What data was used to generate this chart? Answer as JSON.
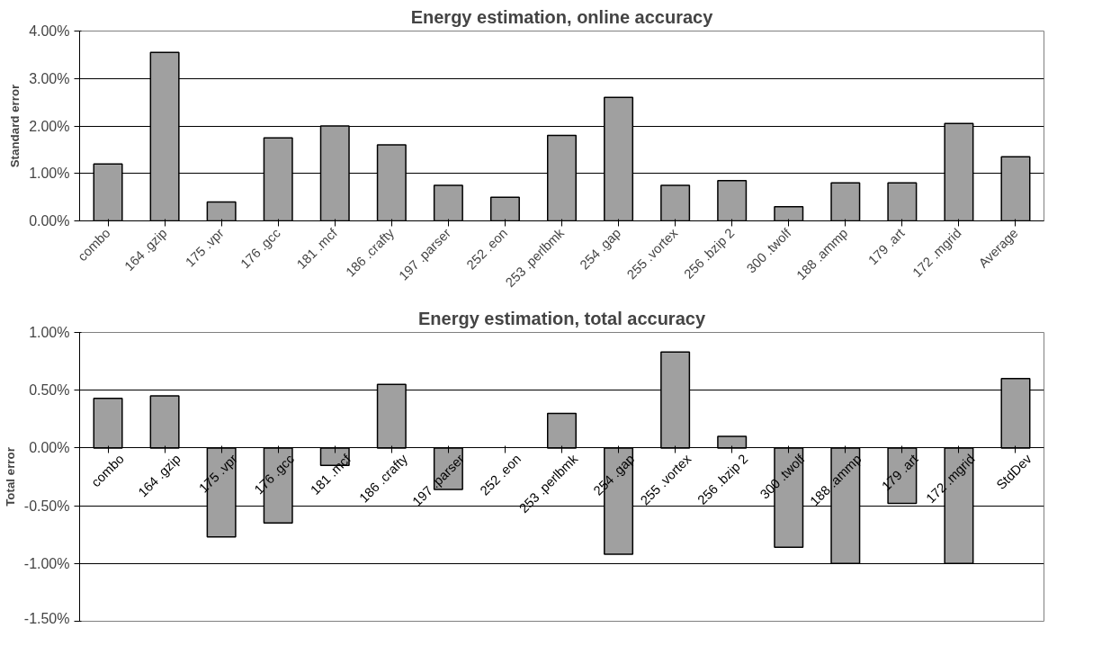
{
  "chart_data": [
    {
      "type": "bar",
      "title": "Energy estimation, online accuracy",
      "ylabel": "Standard error",
      "categories": [
        "combo",
        "164 .gzip",
        "175 .vpr",
        "176 .gcc",
        "181 .mcf",
        "186 .crafty",
        "197 .parser",
        "252 .eon",
        "253 .perlbmk",
        "254 .gap",
        "255 .vortex",
        "256 .bzip 2",
        "300 .twolf",
        "188 .ammp",
        "179 .art",
        "172 .mgrid",
        "Average"
      ],
      "values": [
        1.2,
        3.55,
        0.4,
        1.75,
        2.0,
        1.6,
        0.75,
        0.5,
        1.8,
        2.6,
        0.75,
        0.85,
        0.3,
        0.8,
        0.8,
        2.05,
        1.35
      ],
      "color": "#a0a0a0",
      "ylim": [
        0,
        4
      ],
      "yticks": [
        {
          "value": 0,
          "label": "0.00%"
        },
        {
          "value": 1,
          "label": "1.00%"
        },
        {
          "value": 2,
          "label": "2.00%"
        },
        {
          "value": 3,
          "label": "3.00%"
        },
        {
          "value": 4,
          "label": "4.00%"
        }
      ],
      "grid": "y"
    },
    {
      "type": "bar",
      "title": "Energy estimation, total accuracy",
      "ylabel": "Total error",
      "categories": [
        "combo",
        "164 .gzip",
        "175 .vpr",
        "176 .gcc",
        "181 .mcf",
        "186 .crafty",
        "197 .parser",
        "252 .eon",
        "253 .perlbmk",
        "254 .gap",
        "255 .vortex",
        "256 .bzip 2",
        "300 .twolf",
        "188 .ammp",
        "179 .art",
        "172 .mgrid",
        "StdDev"
      ],
      "values": [
        0.43,
        0.45,
        -0.77,
        -0.65,
        -0.15,
        0.55,
        -0.36,
        null,
        0.3,
        -0.92,
        0.83,
        0.1,
        -0.86,
        -1.0,
        -0.48,
        -1.0,
        0.6
      ],
      "color": "#a0a0a0",
      "ylim": [
        -1.5,
        1
      ],
      "yticks": [
        {
          "value": -1.5,
          "label": "-1.50%"
        },
        {
          "value": -1,
          "label": "-1.00%"
        },
        {
          "value": -0.5,
          "label": "-0.50%"
        },
        {
          "value": 0,
          "label": "0.00%"
        },
        {
          "value": 0.5,
          "label": "0.50%"
        },
        {
          "value": 1,
          "label": "1.00%"
        }
      ],
      "grid": "y"
    }
  ]
}
